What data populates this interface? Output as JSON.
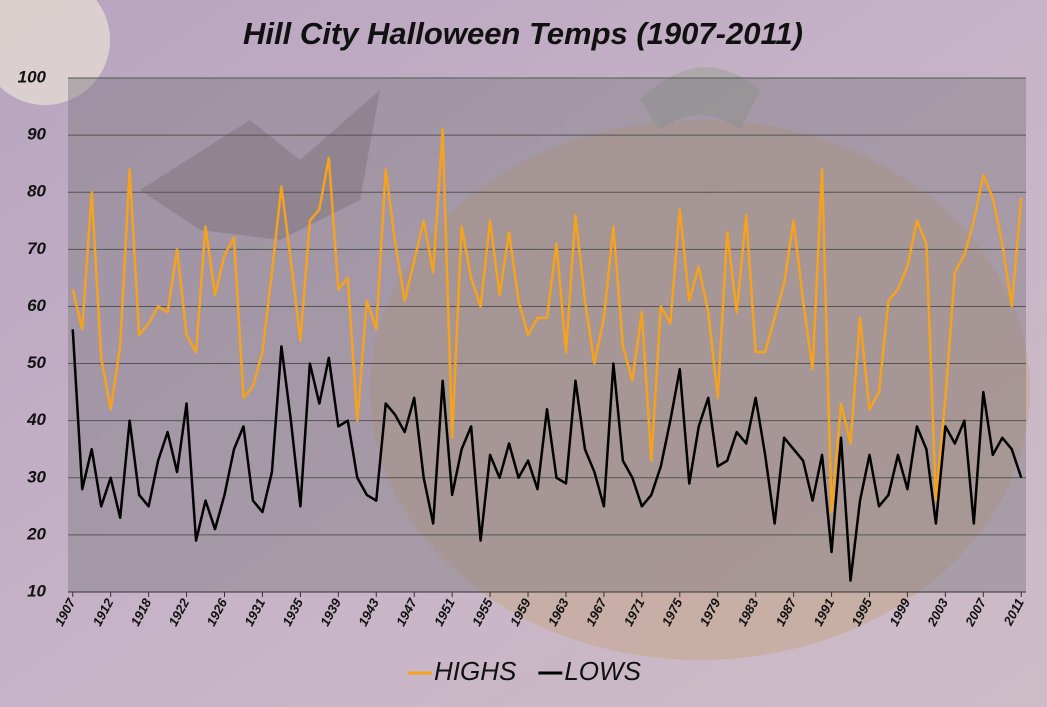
{
  "chart_data": {
    "type": "line",
    "title": "Hill City Halloween Temps (1907-2011)",
    "categories": [
      "1907",
      null,
      null,
      null,
      "1912",
      null,
      null,
      null,
      "1918",
      null,
      null,
      null,
      "1922",
      null,
      null,
      null,
      "1926",
      null,
      null,
      null,
      "1931",
      null,
      null,
      null,
      "1935",
      null,
      null,
      null,
      "1939",
      null,
      null,
      null,
      "1943",
      null,
      null,
      null,
      "1947",
      null,
      null,
      null,
      "1951",
      null,
      null,
      null,
      "1955",
      null,
      null,
      null,
      "1959",
      null,
      null,
      null,
      "1963",
      null,
      null,
      null,
      "1967",
      null,
      null,
      null,
      "1971",
      null,
      null,
      null,
      "1975",
      null,
      null,
      null,
      "1979",
      null,
      null,
      null,
      "1983",
      null,
      null,
      null,
      "1987",
      null,
      null,
      null,
      "1991",
      null,
      null,
      null,
      "1995",
      null,
      null,
      null,
      "1999",
      null,
      null,
      null,
      "2003",
      null,
      null,
      null,
      "2007",
      null,
      null,
      null,
      "2011"
    ],
    "series": [
      {
        "name": "HIGHS",
        "color": "#f5a21e",
        "values": [
          63,
          56,
          80,
          51,
          42,
          53,
          84,
          55,
          57,
          60,
          59,
          70,
          55,
          52,
          74,
          62,
          69,
          72,
          44,
          46,
          52,
          66,
          81,
          68,
          54,
          75,
          77,
          86,
          63,
          65,
          40,
          61,
          56,
          84,
          71,
          61,
          68,
          75,
          66,
          91,
          37,
          74,
          65,
          60,
          75,
          62,
          73,
          61,
          55,
          58,
          58,
          71,
          52,
          76,
          61,
          50,
          58,
          74,
          53,
          47,
          59,
          33,
          60,
          57,
          77,
          61,
          67,
          59,
          44,
          73,
          59,
          76,
          52,
          52,
          58,
          64,
          75,
          61,
          49,
          84,
          24,
          43,
          36,
          58,
          42,
          45,
          61,
          63,
          67,
          75,
          71,
          26,
          44,
          66,
          69,
          75,
          83,
          79,
          71,
          60,
          79
        ]
      },
      {
        "name": "LOWS",
        "color": "#000000",
        "values": [
          56,
          28,
          35,
          25,
          30,
          23,
          40,
          27,
          25,
          33,
          38,
          31,
          43,
          19,
          26,
          21,
          27,
          35,
          39,
          26,
          24,
          31,
          53,
          40,
          25,
          50,
          43,
          51,
          39,
          40,
          30,
          27,
          26,
          43,
          41,
          38,
          44,
          30,
          22,
          47,
          27,
          35,
          39,
          19,
          34,
          30,
          36,
          30,
          33,
          28,
          42,
          30,
          29,
          47,
          35,
          31,
          25,
          50,
          33,
          30,
          25,
          27,
          32,
          40,
          49,
          29,
          39,
          44,
          32,
          33,
          38,
          36,
          44,
          34,
          22,
          37,
          35,
          33,
          26,
          34,
          17,
          37,
          12,
          26,
          34,
          25,
          27,
          34,
          28,
          39,
          35,
          22,
          39,
          36,
          40,
          22,
          45,
          34,
          37,
          35,
          30
        ]
      }
    ],
    "ylim": [
      10,
      100
    ],
    "yticks": [
      10,
      20,
      30,
      40,
      50,
      60,
      70,
      80,
      90,
      100
    ],
    "grid": true,
    "legend": "bottom"
  }
}
